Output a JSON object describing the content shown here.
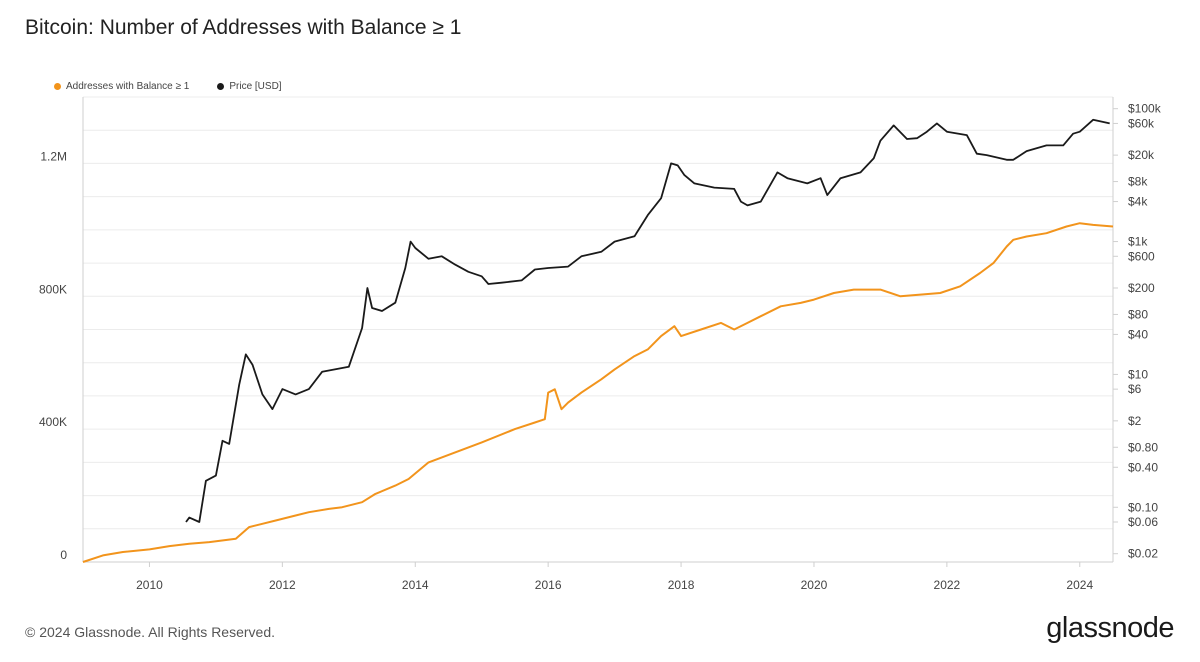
{
  "title": "Bitcoin: Number of Addresses with Balance ≥ 1",
  "footer": "© 2024 Glassnode. All Rights Reserved.",
  "logo": "glassnode",
  "colors": {
    "addresses": "#f2941c",
    "price": "#1a1a1a",
    "grid": "#ececec",
    "axis": "#cfcfcf"
  },
  "chart_data": {
    "type": "line",
    "title": "Bitcoin: Number of Addresses with Balance ≥ 1",
    "xlabel": "",
    "ylabel": "",
    "legend_position": "top-left",
    "grid": true,
    "x_ticks": [
      "2010",
      "2012",
      "2014",
      "2016",
      "2018",
      "2020",
      "2022",
      "2024"
    ],
    "x_range": [
      2009.0,
      2024.5
    ],
    "y_left": {
      "scale": "linear",
      "range": [
        0,
        1400000
      ],
      "ticks": [
        {
          "value": 0,
          "label": "0"
        },
        {
          "value": 400000,
          "label": "400K"
        },
        {
          "value": 800000,
          "label": "800K"
        },
        {
          "value": 1200000,
          "label": "1.2M"
        }
      ]
    },
    "y_right": {
      "scale": "log",
      "range": [
        0.015,
        150000
      ],
      "ticks": [
        {
          "value": 100000,
          "label": "$100k"
        },
        {
          "value": 60000,
          "label": "$60k"
        },
        {
          "value": 20000,
          "label": "$20k"
        },
        {
          "value": 8000,
          "label": "$8k"
        },
        {
          "value": 4000,
          "label": "$4k"
        },
        {
          "value": 1000,
          "label": "$1k"
        },
        {
          "value": 600,
          "label": "$600"
        },
        {
          "value": 200,
          "label": "$200"
        },
        {
          "value": 80,
          "label": "$80"
        },
        {
          "value": 40,
          "label": "$40"
        },
        {
          "value": 10,
          "label": "$10"
        },
        {
          "value": 6,
          "label": "$6"
        },
        {
          "value": 2,
          "label": "$2"
        },
        {
          "value": 0.8,
          "label": "$0.80"
        },
        {
          "value": 0.4,
          "label": "$0.40"
        },
        {
          "value": 0.1,
          "label": "$0.10"
        },
        {
          "value": 0.06,
          "label": "$0.06"
        },
        {
          "value": 0.02,
          "label": "$0.02"
        }
      ]
    },
    "series": [
      {
        "name": "Addresses with Balance ≥ 1",
        "axis": "left",
        "x": [
          2009.0,
          2009.3,
          2009.6,
          2010.0,
          2010.3,
          2010.6,
          2010.9,
          2011.3,
          2011.5,
          2011.7,
          2011.9,
          2012.2,
          2012.4,
          2012.7,
          2012.9,
          2013.2,
          2013.4,
          2013.7,
          2013.9,
          2014.2,
          2014.6,
          2015.0,
          2015.5,
          2015.8,
          2015.95,
          2016.0,
          2016.1,
          2016.2,
          2016.3,
          2016.5,
          2016.8,
          2017.0,
          2017.3,
          2017.5,
          2017.7,
          2017.9,
          2018.0,
          2018.3,
          2018.6,
          2018.8,
          2019.0,
          2019.2,
          2019.5,
          2019.8,
          2020.0,
          2020.3,
          2020.6,
          2021.0,
          2021.3,
          2021.6,
          2021.9,
          2022.2,
          2022.5,
          2022.7,
          2022.9,
          2023.0,
          2023.2,
          2023.5,
          2023.8,
          2024.0,
          2024.2,
          2024.5
        ],
        "values": [
          0,
          20000,
          30000,
          38000,
          48000,
          55000,
          60000,
          70000,
          105000,
          115000,
          125000,
          140000,
          150000,
          160000,
          165000,
          180000,
          205000,
          230000,
          250000,
          300000,
          330000,
          360000,
          400000,
          420000,
          430000,
          510000,
          520000,
          460000,
          480000,
          510000,
          550000,
          580000,
          620000,
          640000,
          680000,
          710000,
          680000,
          700000,
          720000,
          700000,
          720000,
          740000,
          770000,
          780000,
          790000,
          810000,
          820000,
          820000,
          800000,
          805000,
          810000,
          830000,
          870000,
          900000,
          950000,
          970000,
          980000,
          990000,
          1010000,
          1020000,
          1015000,
          1010000
        ]
      },
      {
        "name": "Price [USD]",
        "axis": "right",
        "x": [
          2010.55,
          2010.6,
          2010.75,
          2010.85,
          2011.0,
          2011.1,
          2011.2,
          2011.35,
          2011.45,
          2011.55,
          2011.7,
          2011.85,
          2012.0,
          2012.2,
          2012.4,
          2012.6,
          2012.8,
          2013.0,
          2013.2,
          2013.28,
          2013.35,
          2013.5,
          2013.7,
          2013.85,
          2013.93,
          2014.0,
          2014.2,
          2014.4,
          2014.6,
          2014.8,
          2015.0,
          2015.1,
          2015.3,
          2015.6,
          2015.8,
          2016.0,
          2016.3,
          2016.5,
          2016.8,
          2017.0,
          2017.3,
          2017.5,
          2017.7,
          2017.85,
          2017.95,
          2018.05,
          2018.2,
          2018.5,
          2018.8,
          2018.9,
          2019.0,
          2019.2,
          2019.45,
          2019.6,
          2019.9,
          2020.1,
          2020.2,
          2020.4,
          2020.7,
          2020.9,
          2021.0,
          2021.2,
          2021.4,
          2021.55,
          2021.7,
          2021.85,
          2022.0,
          2022.3,
          2022.45,
          2022.6,
          2022.9,
          2023.0,
          2023.2,
          2023.5,
          2023.75,
          2023.9,
          2024.0,
          2024.2,
          2024.45
        ],
        "values": [
          0.06,
          0.07,
          0.06,
          0.25,
          0.3,
          1.0,
          0.9,
          7,
          20,
          14,
          5,
          3,
          6,
          5,
          6,
          11,
          12,
          13,
          50,
          200,
          100,
          90,
          120,
          400,
          1000,
          800,
          550,
          600,
          450,
          350,
          300,
          230,
          240,
          260,
          380,
          400,
          420,
          600,
          700,
          1000,
          1200,
          2500,
          4500,
          15000,
          14000,
          10000,
          7500,
          6500,
          6200,
          4000,
          3500,
          4000,
          11000,
          9000,
          7500,
          9000,
          5000,
          9000,
          11000,
          18000,
          33000,
          56000,
          35000,
          36000,
          45000,
          60000,
          45000,
          40000,
          21000,
          20000,
          17000,
          17000,
          23000,
          28000,
          28000,
          42000,
          45000,
          68000,
          60000
        ]
      }
    ]
  }
}
